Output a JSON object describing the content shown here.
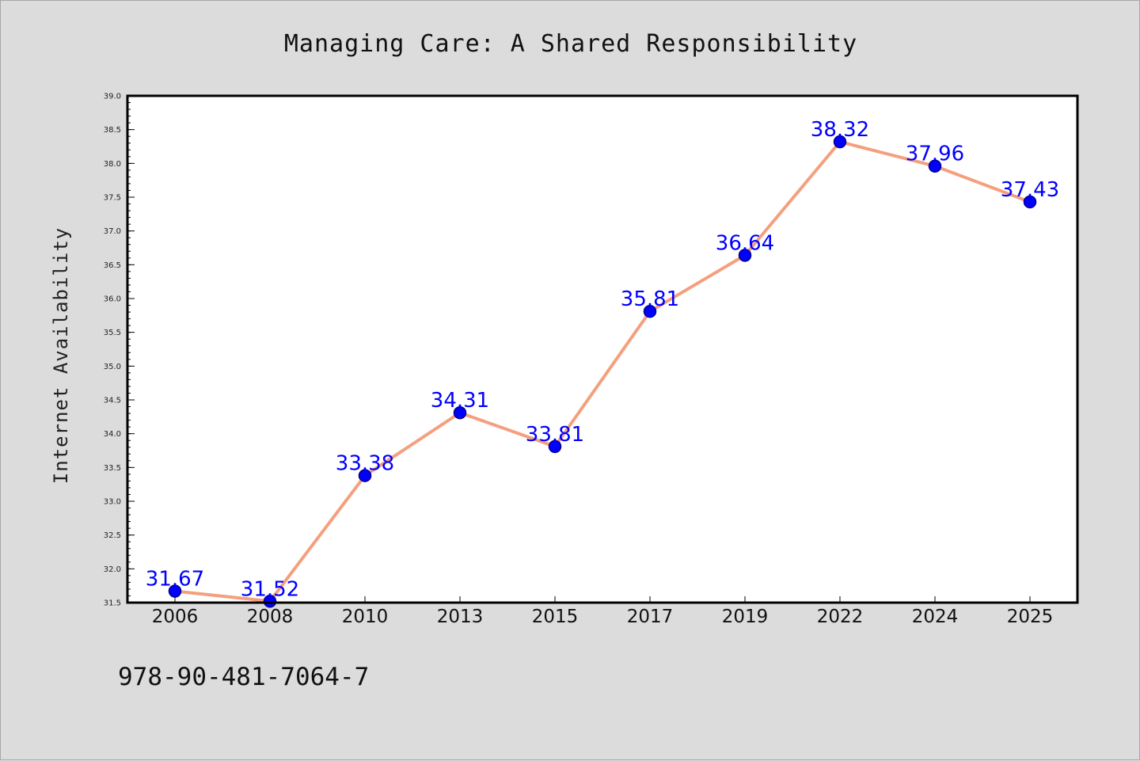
{
  "chart_data": {
    "type": "line",
    "title": "Managing Care: A Shared Responsibility",
    "xlabel": "",
    "ylabel": "Internet Availability",
    "categories": [
      "2006",
      "2008",
      "2010",
      "2013",
      "2015",
      "2017",
      "2019",
      "2022",
      "2024",
      "2025"
    ],
    "series": [
      {
        "values": [
          31.67,
          31.52,
          33.38,
          34.31,
          33.81,
          35.81,
          36.64,
          38.32,
          37.96,
          37.43
        ],
        "data_labels": [
          "31.67",
          "31.52",
          "33.38",
          "34.31",
          "33.81",
          "35.81",
          "36.64",
          "38.32",
          "37.96",
          "37.43"
        ]
      }
    ],
    "ylim": [
      31.5,
      39.0
    ],
    "yticks": [
      "31.5",
      "32.0",
      "32.5",
      "33.0",
      "33.5",
      "34.0",
      "34.5",
      "35.0",
      "35.5",
      "36.0",
      "36.5",
      "37.0",
      "37.5",
      "38.0",
      "38.5",
      "39.0"
    ],
    "grid": false,
    "legend": "none",
    "colors": {
      "line": "#f4a07e",
      "marker": "#0000ff",
      "marker_edge": "#00008b",
      "labels": "#0000ff",
      "background": "#dcdcdc",
      "plot_background": "#ffffff"
    }
  },
  "footer": {
    "isbn": "978-90-481-7064-7"
  }
}
